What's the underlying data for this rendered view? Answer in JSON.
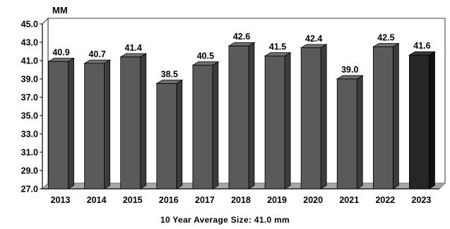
{
  "chart_data": {
    "type": "bar",
    "ylabel": "MM",
    "categories": [
      "2013",
      "2014",
      "2015",
      "2016",
      "2017",
      "2018",
      "2019",
      "2020",
      "2021",
      "2022",
      "2023"
    ],
    "values": [
      40.9,
      40.7,
      41.4,
      38.5,
      40.5,
      42.6,
      41.5,
      42.4,
      39.0,
      42.5,
      41.6
    ],
    "value_labels": [
      "40.9",
      "40.7",
      "41.4",
      "38.5",
      "40.5",
      "42.6",
      "41.5",
      "42.4",
      "39.0",
      "42.5",
      "41.6"
    ],
    "ylim": [
      27.0,
      45.0
    ],
    "yticks": [
      "27.0",
      "29.0",
      "31.0",
      "33.0",
      "35.0",
      "37.0",
      "39.0",
      "41.0",
      "43.0",
      "45.0"
    ],
    "grid": false,
    "legend": "none",
    "colors": {
      "bar": "#5a5a5a",
      "highlight_bar": "#262626",
      "floor": "#a6a6a6"
    },
    "highlight_index": 10,
    "footer": "10 Year Average Size:  41.0 mm"
  }
}
